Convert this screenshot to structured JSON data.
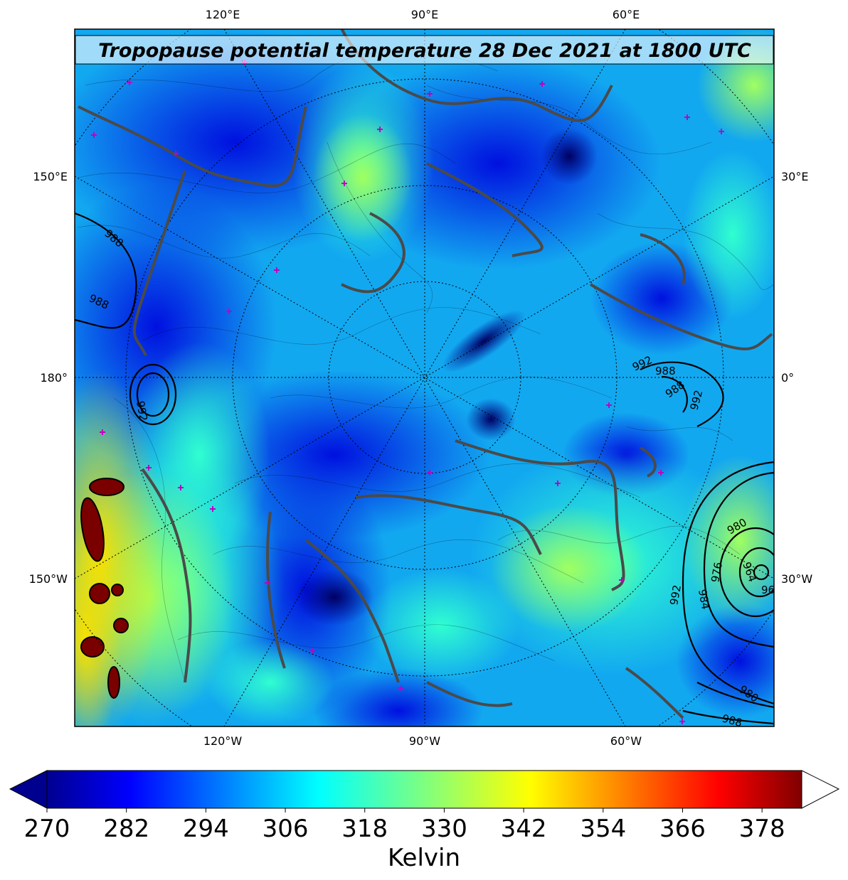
{
  "map": {
    "title": "Tropopause potential temperature 28 Dec 2021 at 1800 UTC",
    "projection": "north-polar-stereographic",
    "top_labels": [
      "120°E",
      "90°E",
      "60°E"
    ],
    "bottom_labels": [
      "120°W",
      "90°W",
      "60°W"
    ],
    "left_labels": [
      "150°E",
      "180°",
      "150°W"
    ],
    "right_labels": [
      "30°E",
      "0°",
      "30°W"
    ],
    "isobar_labels": [
      "988",
      "988",
      "992",
      "988",
      "988",
      "992",
      "992",
      "980",
      "976",
      "984",
      "964",
      "96",
      "992",
      "980",
      "988"
    ],
    "coastline_color": "#4a4a4a",
    "station_marker_color": "#c000c0"
  },
  "colorbar": {
    "colormap": "jet",
    "vmin": 270,
    "vmax": 384,
    "extend": "both",
    "ticks": [
      "270",
      "282",
      "294",
      "306",
      "318",
      "330",
      "342",
      "354",
      "366",
      "378"
    ],
    "label": "Kelvin"
  }
}
